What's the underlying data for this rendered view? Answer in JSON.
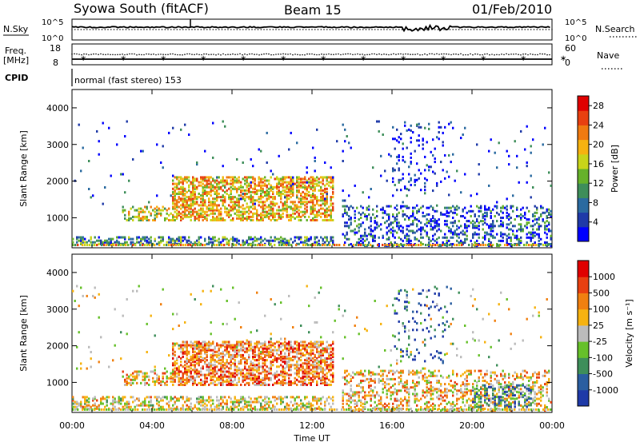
{
  "header": {
    "station": "Syowa South (fitACF)",
    "beam": "Beam 15",
    "date": "01/Feb/2010"
  },
  "top_panels": {
    "nsky_label": "N.Sky",
    "nsky_ticks": [
      "10^5",
      "10^0"
    ],
    "nsearch_label": "N.Search",
    "nsearch_ticks": [
      "10^5",
      "10^0"
    ],
    "freq_label_1": "Freq.",
    "freq_label_2": "[MHz]",
    "freq_ticks": [
      "18",
      "8"
    ],
    "nave_label": "Nave",
    "nave_ticks": [
      "60",
      "0"
    ],
    "cpid_label": "CPID",
    "mode_text": "normal (fast stereo) 153"
  },
  "chart_data": [
    {
      "type": "heatmap",
      "title": "",
      "xlabel": "Time UT",
      "ylabel": "Slant Range [km]",
      "x_ticks": [
        "00:00",
        "04:00",
        "08:00",
        "12:00",
        "16:00",
        "20:00",
        "00:00"
      ],
      "xlim_hours": [
        0,
        24
      ],
      "y_ticks": [
        1000,
        2000,
        3000,
        4000
      ],
      "ylim_km": [
        180,
        4500
      ],
      "colorbar_label": "Power [dB]",
      "colorbar_ticks": [
        "4",
        "8",
        "12",
        "16",
        "20",
        "24",
        "28"
      ],
      "colorbar_range": [
        0,
        30
      ],
      "colorbar_colors": [
        "#0000ff",
        "#1f3aa8",
        "#2a6aa0",
        "#3e8e5a",
        "#66b22a",
        "#c8d41a",
        "#f6b210",
        "#f07a10",
        "#e84010",
        "#e00000"
      ],
      "grid": false,
      "scatter_regions": [
        {
          "t0": 5.0,
          "t1": 13.0,
          "r0": 900,
          "r1": 2100,
          "density": 0.55,
          "level": 0.65
        },
        {
          "t0": 2.5,
          "t1": 5.0,
          "r0": 900,
          "r1": 1300,
          "density": 0.45,
          "level": 0.55
        },
        {
          "t0": 0.0,
          "t1": 13.0,
          "r0": 250,
          "r1": 450,
          "density": 0.45,
          "level": 0.3
        },
        {
          "t0": 13.5,
          "t1": 24.0,
          "r0": 200,
          "r1": 1300,
          "density": 0.3,
          "level": 0.2
        },
        {
          "t0": 16.0,
          "t1": 19.0,
          "r0": 1500,
          "r1": 3600,
          "density": 0.08,
          "level": 0.1
        },
        {
          "t0": 0.0,
          "t1": 24.0,
          "r0": 1300,
          "r1": 3600,
          "density": 0.015,
          "level": 0.15
        }
      ]
    },
    {
      "type": "heatmap",
      "title": "",
      "xlabel": "Time UT",
      "ylabel": "Slant Range [km]",
      "x_ticks": [
        "00:00",
        "04:00",
        "08:00",
        "12:00",
        "16:00",
        "20:00",
        "00:00"
      ],
      "xlim_hours": [
        0,
        24
      ],
      "y_ticks": [
        1000,
        2000,
        3000,
        4000
      ],
      "ylim_km": [
        180,
        4500
      ],
      "colorbar_label": "Velocity [m s⁻¹]",
      "colorbar_ticks": [
        "1000",
        "500",
        "100",
        "25",
        "-25",
        "-100",
        "-500",
        "-1000"
      ],
      "colorbar_colors": [
        "#1f3aa8",
        "#2a5ea0",
        "#3e8e5a",
        "#66c02a",
        "#bbbbbb",
        "#f6b210",
        "#f08010",
        "#e84010",
        "#e00000"
      ],
      "grid": false,
      "scatter_regions": [
        {
          "t0": 5.0,
          "t1": 13.0,
          "r0": 900,
          "r1": 2100,
          "density": 0.55,
          "level": 0.72
        },
        {
          "t0": 2.5,
          "t1": 5.0,
          "r0": 900,
          "r1": 1300,
          "density": 0.45,
          "level": 0.62
        },
        {
          "t0": 0.0,
          "t1": 13.0,
          "r0": 250,
          "r1": 600,
          "density": 0.4,
          "level": 0.55
        },
        {
          "t0": 13.5,
          "t1": 24.0,
          "r0": 200,
          "r1": 1300,
          "density": 0.3,
          "level": 0.6
        },
        {
          "t0": 20.0,
          "t1": 23.0,
          "r0": 300,
          "r1": 900,
          "density": 0.35,
          "level": 0.25
        },
        {
          "t0": 16.0,
          "t1": 19.0,
          "r0": 1500,
          "r1": 3600,
          "density": 0.08,
          "level": 0.1
        },
        {
          "t0": 0.0,
          "t1": 24.0,
          "r0": 1300,
          "r1": 3600,
          "density": 0.015,
          "level": 0.5
        }
      ]
    }
  ]
}
